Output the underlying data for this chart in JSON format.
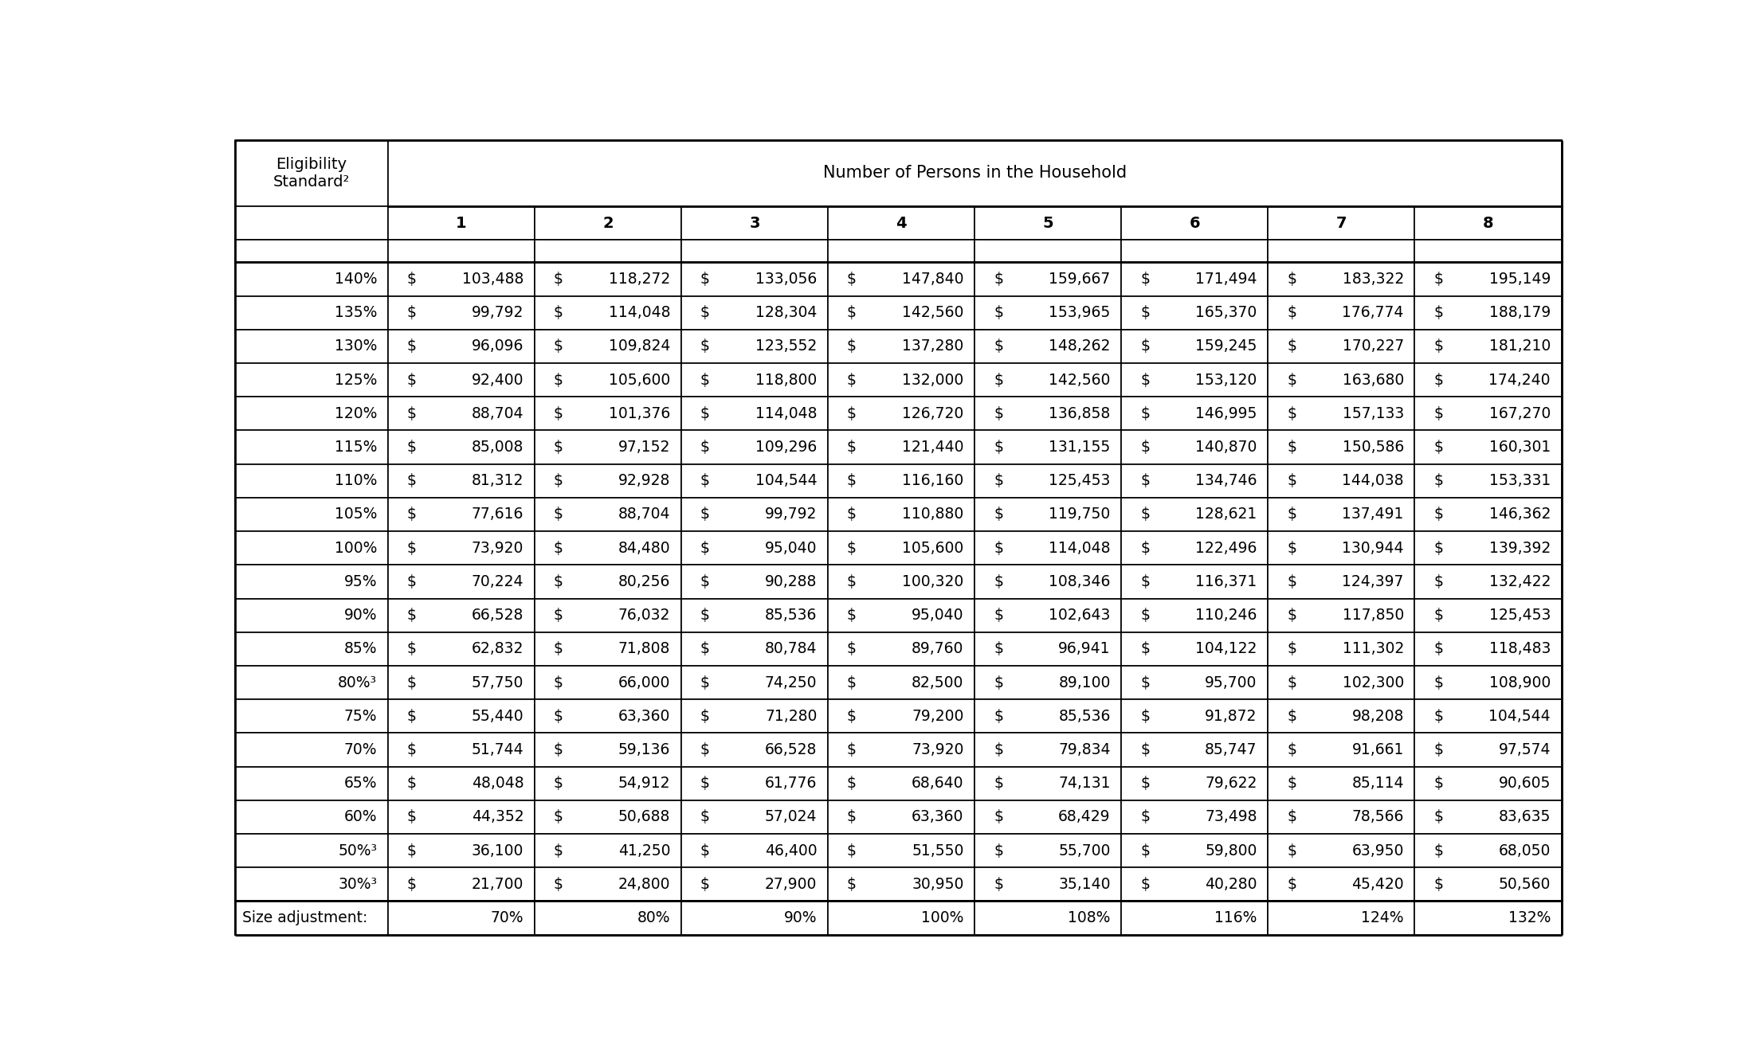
{
  "header_col": "Eligibility\nStandard²",
  "header_span": "Number of Persons in the Household",
  "col_numbers": [
    "1",
    "2",
    "3",
    "4",
    "5",
    "6",
    "7",
    "8"
  ],
  "rows": [
    [
      "140%",
      103488,
      118272,
      133056,
      147840,
      159667,
      171494,
      183322,
      195149
    ],
    [
      "135%",
      99792,
      114048,
      128304,
      142560,
      153965,
      165370,
      176774,
      188179
    ],
    [
      "130%",
      96096,
      109824,
      123552,
      137280,
      148262,
      159245,
      170227,
      181210
    ],
    [
      "125%",
      92400,
      105600,
      118800,
      132000,
      142560,
      153120,
      163680,
      174240
    ],
    [
      "120%",
      88704,
      101376,
      114048,
      126720,
      136858,
      146995,
      157133,
      167270
    ],
    [
      "115%",
      85008,
      97152,
      109296,
      121440,
      131155,
      140870,
      150586,
      160301
    ],
    [
      "110%",
      81312,
      92928,
      104544,
      116160,
      125453,
      134746,
      144038,
      153331
    ],
    [
      "105%",
      77616,
      88704,
      99792,
      110880,
      119750,
      128621,
      137491,
      146362
    ],
    [
      "100%",
      73920,
      84480,
      95040,
      105600,
      114048,
      122496,
      130944,
      139392
    ],
    [
      "95%",
      70224,
      80256,
      90288,
      100320,
      108346,
      116371,
      124397,
      132422
    ],
    [
      "90%",
      66528,
      76032,
      85536,
      95040,
      102643,
      110246,
      117850,
      125453
    ],
    [
      "85%",
      62832,
      71808,
      80784,
      89760,
      96941,
      104122,
      111302,
      118483
    ],
    [
      "80%³",
      57750,
      66000,
      74250,
      82500,
      89100,
      95700,
      102300,
      108900
    ],
    [
      "75%",
      55440,
      63360,
      71280,
      79200,
      85536,
      91872,
      98208,
      104544
    ],
    [
      "70%",
      51744,
      59136,
      66528,
      73920,
      79834,
      85747,
      91661,
      97574
    ],
    [
      "65%",
      48048,
      54912,
      61776,
      68640,
      74131,
      79622,
      85114,
      90605
    ],
    [
      "60%",
      44352,
      50688,
      57024,
      63360,
      68429,
      73498,
      78566,
      83635
    ],
    [
      "50%³",
      36100,
      41250,
      46400,
      51550,
      55700,
      59800,
      63950,
      68050
    ],
    [
      "30%³",
      21700,
      24800,
      27900,
      30950,
      35140,
      40280,
      45420,
      50560
    ]
  ],
  "footer": [
    "Size adjustment:",
    "70%",
    "80%",
    "90%",
    "100%",
    "108%",
    "116%",
    "124%",
    "132%"
  ],
  "figsize": [
    22.0,
    13.36
  ],
  "dpi": 100
}
